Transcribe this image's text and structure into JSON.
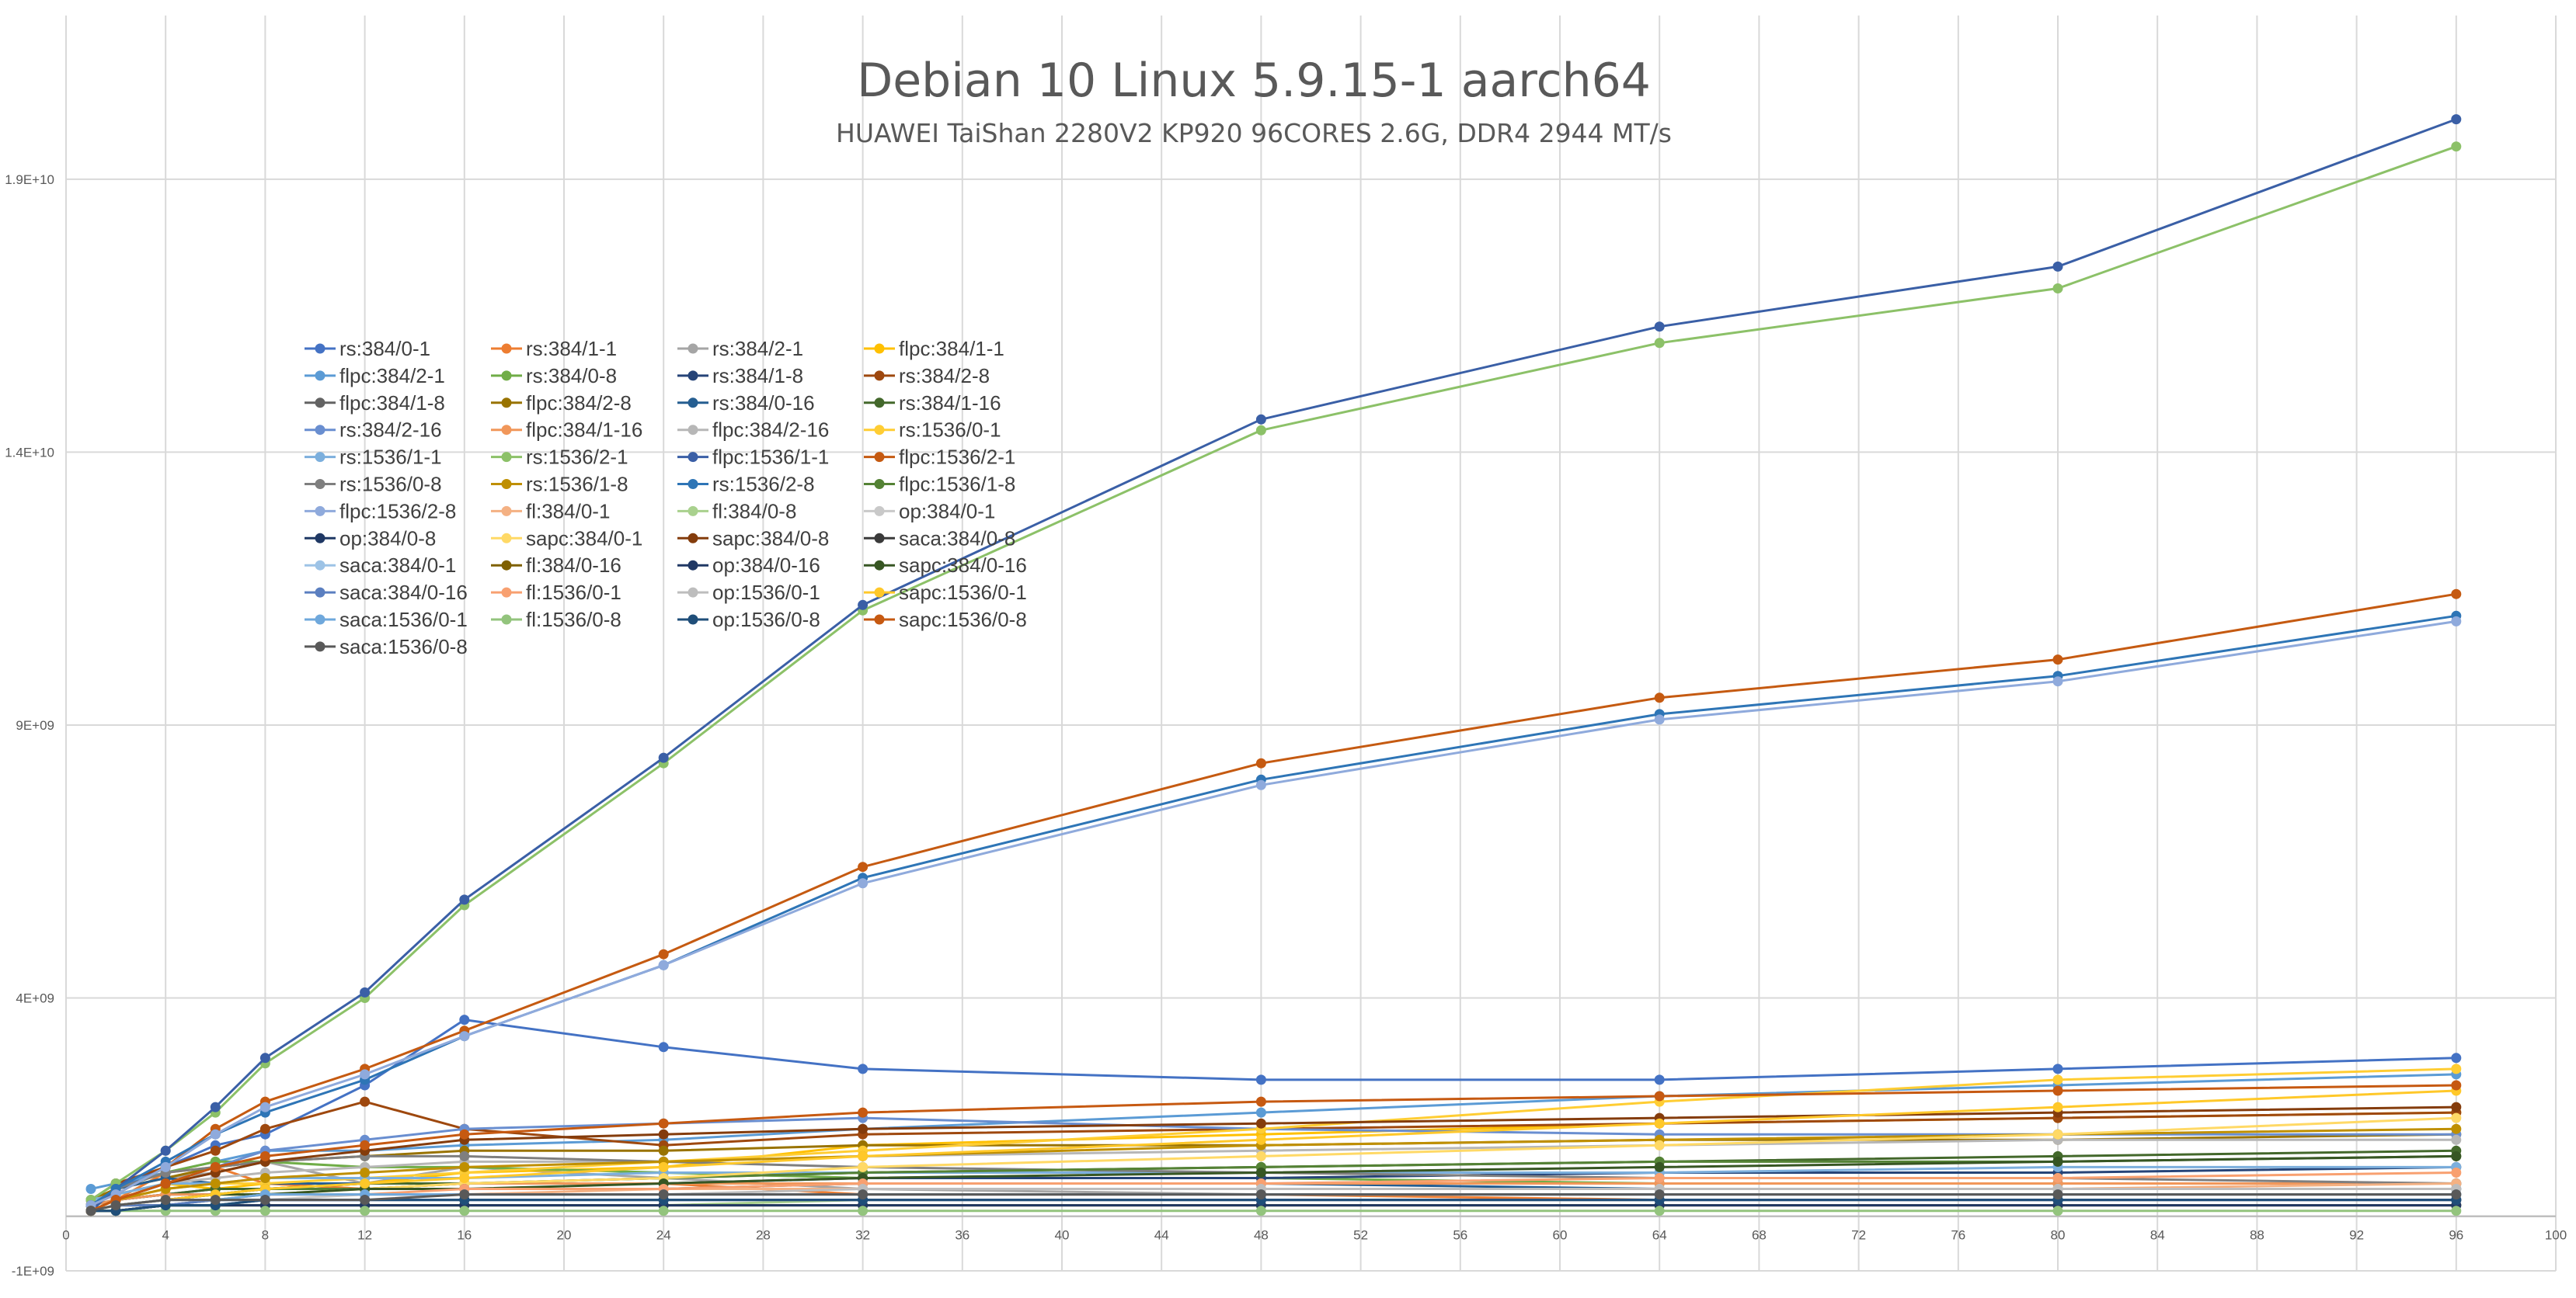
{
  "chart_data": {
    "type": "line",
    "title": "Debian 10 Linux 5.9.15-1 aarch64",
    "subtitle": "HUAWEI TaiShan 2280V2  KP920 96CORES 2.6G, DDR4 2944 MT/s",
    "xlabel": "",
    "ylabel": "",
    "xlim": [
      0,
      100
    ],
    "ylim": [
      -1000000000,
      22000000000
    ],
    "x_ticks": [
      "0",
      "4",
      "8",
      "12",
      "16",
      "20",
      "24",
      "28",
      "32",
      "36",
      "40",
      "44",
      "48",
      "52",
      "56",
      "60",
      "64",
      "68",
      "72",
      "76",
      "80",
      "84",
      "88",
      "92",
      "96",
      "100"
    ],
    "y_ticks": [
      {
        "value": -1000000000,
        "label": "-1E+09"
      },
      {
        "value": 4000000000,
        "label": "4E+09"
      },
      {
        "value": 9000000000,
        "label": "9E+09"
      },
      {
        "value": 14000000000,
        "label": "1.4E+10"
      },
      {
        "value": 19000000000,
        "label": "1.9E+10"
      }
    ],
    "grid": true,
    "legend_position": "upper-left",
    "x": [
      1,
      2,
      4,
      6,
      8,
      12,
      16,
      24,
      32,
      48,
      64,
      80,
      96
    ],
    "series": [
      {
        "name": "rs:384/0-1",
        "color": "#4472C4",
        "values": [
          100000000.0,
          500000000.0,
          900000000.0,
          1300000000.0,
          1500000000.0,
          2400000000.0,
          3600000000.0,
          3100000000.0,
          2700000000.0,
          2500000000.0,
          2500000000.0,
          2700000000.0,
          2900000000.0
        ]
      },
      {
        "name": "rs:384/1-1",
        "color": "#ED7D31",
        "values": [
          200000000.0,
          300000000.0,
          800000000.0,
          900000000.0,
          600000000.0,
          500000000.0,
          600000000.0,
          600000000.0,
          400000000.0,
          400000000.0,
          300000000.0,
          300000000.0,
          300000000.0
        ]
      },
      {
        "name": "rs:384/2-1",
        "color": "#A5A5A5",
        "values": [
          300000000.0,
          500000000.0,
          700000000.0,
          800000000.0,
          1000000000.0,
          600000000.0,
          900000000.0,
          700000000.0,
          500000000.0,
          400000000.0,
          400000000.0,
          400000000.0,
          400000000.0
        ]
      },
      {
        "name": "flpc:384/1-1",
        "color": "#FFC000",
        "values": [
          200000000.0,
          400000000.0,
          600000000.0,
          500000000.0,
          600000000.0,
          600000000.0,
          800000000.0,
          900000000.0,
          1300000000.0,
          1500000000.0,
          1700000000.0,
          1800000000.0,
          1900000000.0
        ]
      },
      {
        "name": "flpc:384/2-1",
        "color": "#5B9BD5",
        "values": [
          500000000.0,
          600000000.0,
          800000000.0,
          1000000000.0,
          1200000000.0,
          1200000000.0,
          1300000000.0,
          1400000000.0,
          1600000000.0,
          1900000000.0,
          2200000000.0,
          2400000000.0,
          2600000000.0
        ]
      },
      {
        "name": "rs:384/0-8",
        "color": "#70AD47",
        "values": [
          100000000.0,
          500000000.0,
          800000000.0,
          1000000000.0,
          1000000000.0,
          900000000.0,
          900000000.0,
          800000000.0,
          700000000.0,
          700000000.0,
          600000000.0,
          600000000.0,
          600000000.0
        ]
      },
      {
        "name": "rs:384/1-8",
        "color": "#264478",
        "values": [
          200000000.0,
          300000000.0,
          400000000.0,
          500000000.0,
          500000000.0,
          600000000.0,
          600000000.0,
          600000000.0,
          700000000.0,
          700000000.0,
          800000000.0,
          800000000.0,
          900000000.0
        ]
      },
      {
        "name": "rs:384/2-8",
        "color": "#9E480E",
        "values": [
          300000000.0,
          600000000.0,
          900000000.0,
          1200000000.0,
          1600000000.0,
          2100000000.0,
          1600000000.0,
          1300000000.0,
          1500000000.0,
          1600000000.0,
          1700000000.0,
          1800000000.0,
          1900000000.0
        ]
      },
      {
        "name": "flpc:384/1-8",
        "color": "#636363",
        "values": [
          200000000.0,
          300000000.0,
          400000000.0,
          400000000.0,
          500000000.0,
          500000000.0,
          500000000.0,
          500000000.0,
          600000000.0,
          600000000.0,
          600000000.0,
          600000000.0,
          600000000.0
        ]
      },
      {
        "name": "flpc:384/2-8",
        "color": "#997300",
        "values": [
          300000000.0,
          500000000.0,
          700000000.0,
          900000000.0,
          1000000000.0,
          1100000000.0,
          1200000000.0,
          1200000000.0,
          1300000000.0,
          1300000000.0,
          1400000000.0,
          1400000000.0,
          1500000000.0
        ]
      },
      {
        "name": "rs:384/0-16",
        "color": "#255E91",
        "values": [
          100000000.0,
          500000000.0,
          700000000.0,
          600000000.0,
          600000000.0,
          600000000.0,
          600000000.0,
          600000000.0,
          600000000.0,
          600000000.0,
          500000000.0,
          500000000.0,
          500000000.0
        ]
      },
      {
        "name": "rs:384/1-16",
        "color": "#43682B",
        "values": [
          200000000.0,
          300000000.0,
          400000000.0,
          500000000.0,
          500000000.0,
          600000000.0,
          600000000.0,
          700000000.0,
          800000000.0,
          900000000.0,
          1000000000.0,
          1100000000.0,
          1200000000.0
        ]
      },
      {
        "name": "rs:384/2-16",
        "color": "#698ED0",
        "values": [
          100000000.0,
          300000000.0,
          600000000.0,
          900000000.0,
          1200000000.0,
          1400000000.0,
          1600000000.0,
          1700000000.0,
          1800000000.0,
          1600000000.0,
          1500000000.0,
          1500000000.0,
          1500000000.0
        ]
      },
      {
        "name": "flpc:384/1-16",
        "color": "#F1975A",
        "values": [
          200000000.0,
          300000000.0,
          400000000.0,
          400000000.0,
          500000000.0,
          500000000.0,
          600000000.0,
          600000000.0,
          600000000.0,
          600000000.0,
          600000000.0,
          600000000.0,
          600000000.0
        ]
      },
      {
        "name": "flpc:384/2-16",
        "color": "#B7B7B7",
        "values": [
          300000000.0,
          400000000.0,
          600000000.0,
          700000000.0,
          800000000.0,
          900000000.0,
          1000000000.0,
          1000000000.0,
          1100000000.0,
          1200000000.0,
          1300000000.0,
          1400000000.0,
          1400000000.0
        ]
      },
      {
        "name": "rs:1536/0-1",
        "color": "#FFCD33",
        "values": [
          100000000.0,
          300000000.0,
          500000000.0,
          600000000.0,
          600000000.0,
          700000000.0,
          800000000.0,
          1000000000.0,
          1200000000.0,
          1600000000.0,
          2100000000.0,
          2500000000.0,
          2700000000.0
        ]
      },
      {
        "name": "rs:1536/1-1",
        "color": "#7CAFDD",
        "values": [
          300000000.0,
          400000000.0,
          600000000.0,
          600000000.0,
          700000000.0,
          700000000.0,
          700000000.0,
          800000000.0,
          800000000.0,
          800000000.0,
          800000000.0,
          900000000.0,
          900000000.0
        ]
      },
      {
        "name": "rs:1536/2-1",
        "color": "#8CC168",
        "values": [
          300000000.0,
          600000000.0,
          1200000000.0,
          1900000000.0,
          2800000000.0,
          4000000000.0,
          5700000000.0,
          8300000000.0,
          11100000000.0,
          14400000000.0,
          16000000000.0,
          17000000000.0,
          19600000000.0
        ]
      },
      {
        "name": "flpc:1536/1-1",
        "color": "#3A5FA6",
        "values": [
          100000000.0,
          500000000.0,
          1200000000.0,
          2000000000.0,
          2900000000.0,
          4100000000.0,
          5800000000.0,
          8400000000.0,
          11200000000.0,
          14600000000.0,
          16300000000.0,
          17400000000.0,
          20100000000.0
        ]
      },
      {
        "name": "flpc:1536/2-1",
        "color": "#C55A11",
        "values": [
          200000000.0,
          400000000.0,
          900000000.0,
          1600000000.0,
          2100000000.0,
          2700000000.0,
          3400000000.0,
          4800000000.0,
          6400000000.0,
          8300000000.0,
          9500000000.0,
          10200000000.0,
          11400000000.0
        ]
      },
      {
        "name": "rs:1536/0-8",
        "color": "#7F7F7F",
        "values": [
          200000000.0,
          500000000.0,
          800000000.0,
          900000000.0,
          1000000000.0,
          1100000000.0,
          1100000000.0,
          1000000000.0,
          900000000.0,
          800000000.0,
          700000000.0,
          700000000.0,
          600000000.0
        ]
      },
      {
        "name": "rs:1536/1-8",
        "color": "#BF8F00",
        "values": [
          100000000.0,
          300000000.0,
          500000000.0,
          600000000.0,
          700000000.0,
          800000000.0,
          900000000.0,
          1000000000.0,
          1100000000.0,
          1300000000.0,
          1400000000.0,
          1500000000.0,
          1600000000.0
        ]
      },
      {
        "name": "rs:1536/2-8",
        "color": "#2E75B6",
        "values": [
          200000000.0,
          500000000.0,
          1000000000.0,
          1500000000.0,
          1900000000.0,
          2500000000.0,
          3300000000.0,
          4600000000.0,
          6200000000.0,
          8000000000.0,
          9200000000.0,
          9900000000.0,
          11000000000.0
        ]
      },
      {
        "name": "flpc:1536/1-8",
        "color": "#548235",
        "values": [
          100000000.0,
          200000000.0,
          300000000.0,
          400000000.0,
          500000000.0,
          500000000.0,
          600000000.0,
          700000000.0,
          800000000.0,
          900000000.0,
          1000000000.0,
          1000000000.0,
          1100000000.0
        ]
      },
      {
        "name": "flpc:1536/2-8",
        "color": "#8FAADC",
        "values": [
          200000000.0,
          400000000.0,
          900000000.0,
          1500000000.0,
          2000000000.0,
          2600000000.0,
          3300000000.0,
          4600000000.0,
          6100000000.0,
          7900000000.0,
          9100000000.0,
          9800000000.0,
          10900000000.0
        ]
      },
      {
        "name": "fl:384/0-1",
        "color": "#F4B183",
        "values": [
          100000000.0,
          200000000.0,
          300000000.0,
          300000000.0,
          400000000.0,
          400000000.0,
          400000000.0,
          500000000.0,
          500000000.0,
          500000000.0,
          500000000.0,
          500000000.0,
          600000000.0
        ]
      },
      {
        "name": "fl:384/0-8",
        "color": "#A9D18E",
        "values": [
          100000000.0,
          100000000.0,
          200000000.0,
          200000000.0,
          200000000.0,
          200000000.0,
          200000000.0,
          200000000.0,
          300000000.0,
          300000000.0,
          300000000.0,
          300000000.0,
          300000000.0
        ]
      },
      {
        "name": "op:384/0-1",
        "color": "#C9C9C9",
        "values": [
          100000000.0,
          200000000.0,
          300000000.0,
          300000000.0,
          300000000.0,
          400000000.0,
          400000000.0,
          400000000.0,
          400000000.0,
          400000000.0,
          400000000.0,
          400000000.0,
          400000000.0
        ]
      },
      {
        "name": "op:384/0-8",
        "color": "#1F3864",
        "values": [
          100000000.0,
          100000000.0,
          200000000.0,
          200000000.0,
          300000000.0,
          300000000.0,
          300000000.0,
          300000000.0,
          300000000.0,
          300000000.0,
          300000000.0,
          300000000.0,
          300000000.0
        ]
      },
      {
        "name": "sapc:384/0-1",
        "color": "#FFD966",
        "values": [
          100000000.0,
          200000000.0,
          300000000.0,
          400000000.0,
          400000000.0,
          500000000.0,
          600000000.0,
          700000000.0,
          900000000.0,
          1100000000.0,
          1300000000.0,
          1500000000.0,
          1800000000.0
        ]
      },
      {
        "name": "sapc:384/0-8",
        "color": "#843C0C",
        "values": [
          100000000.0,
          300000000.0,
          600000000.0,
          800000000.0,
          1000000000.0,
          1200000000.0,
          1400000000.0,
          1500000000.0,
          1600000000.0,
          1700000000.0,
          1800000000.0,
          1900000000.0,
          2000000000.0
        ]
      },
      {
        "name": "saca:384/0-8",
        "color": "#3A3A3A",
        "values": [
          100000000.0,
          200000000.0,
          200000000.0,
          300000000.0,
          300000000.0,
          300000000.0,
          300000000.0,
          300000000.0,
          300000000.0,
          300000000.0,
          300000000.0,
          300000000.0,
          300000000.0
        ]
      },
      {
        "name": "saca:384/0-1",
        "color": "#9DC3E6",
        "values": [
          100000000.0,
          200000000.0,
          300000000.0,
          300000000.0,
          300000000.0,
          300000000.0,
          300000000.0,
          300000000.0,
          300000000.0,
          300000000.0,
          300000000.0,
          300000000.0,
          300000000.0
        ]
      },
      {
        "name": "fl:384/0-16",
        "color": "#7F6000",
        "values": [
          100000000.0,
          100000000.0,
          200000000.0,
          200000000.0,
          200000000.0,
          200000000.0,
          200000000.0,
          200000000.0,
          200000000.0,
          200000000.0,
          200000000.0,
          200000000.0,
          200000000.0
        ]
      },
      {
        "name": "op:384/0-16",
        "color": "#203864",
        "values": [
          100000000.0,
          100000000.0,
          200000000.0,
          200000000.0,
          200000000.0,
          200000000.0,
          200000000.0,
          200000000.0,
          200000000.0,
          200000000.0,
          200000000.0,
          200000000.0,
          200000000.0
        ]
      },
      {
        "name": "sapc:384/0-16",
        "color": "#375623",
        "values": [
          100000000.0,
          200000000.0,
          300000000.0,
          400000000.0,
          400000000.0,
          500000000.0,
          500000000.0,
          600000000.0,
          700000000.0,
          800000000.0,
          900000000.0,
          1000000000.0,
          1100000000.0
        ]
      },
      {
        "name": "saca:384/0-16",
        "color": "#5B7FC0",
        "values": [
          100000000.0,
          200000000.0,
          200000000.0,
          300000000.0,
          300000000.0,
          300000000.0,
          300000000.0,
          300000000.0,
          300000000.0,
          300000000.0,
          300000000.0,
          300000000.0,
          300000000.0
        ]
      },
      {
        "name": "fl:1536/0-1",
        "color": "#F8A070",
        "values": [
          100000000.0,
          200000000.0,
          300000000.0,
          300000000.0,
          400000000.0,
          400000000.0,
          500000000.0,
          500000000.0,
          600000000.0,
          600000000.0,
          700000000.0,
          700000000.0,
          800000000.0
        ]
      },
      {
        "name": "op:1536/0-1",
        "color": "#BDBDBD",
        "values": [
          100000000.0,
          200000000.0,
          300000000.0,
          300000000.0,
          400000000.0,
          400000000.0,
          400000000.0,
          400000000.0,
          500000000.0,
          500000000.0,
          500000000.0,
          500000000.0,
          500000000.0
        ]
      },
      {
        "name": "sapc:1536/0-1",
        "color": "#FFC829",
        "values": [
          100000000.0,
          200000000.0,
          300000000.0,
          400000000.0,
          500000000.0,
          600000000.0,
          700000000.0,
          900000000.0,
          1100000000.0,
          1400000000.0,
          1700000000.0,
          2000000000.0,
          2300000000.0
        ]
      },
      {
        "name": "saca:1536/0-1",
        "color": "#6FA8DC",
        "values": [
          100000000.0,
          200000000.0,
          300000000.0,
          300000000.0,
          400000000.0,
          400000000.0,
          400000000.0,
          400000000.0,
          400000000.0,
          400000000.0,
          400000000.0,
          400000000.0,
          400000000.0
        ]
      },
      {
        "name": "fl:1536/0-8",
        "color": "#93C47D",
        "values": [
          100000000.0,
          100000000.0,
          100000000.0,
          100000000.0,
          100000000.0,
          100000000.0,
          100000000.0,
          100000000.0,
          100000000.0,
          100000000.0,
          100000000.0,
          100000000.0,
          100000000.0
        ]
      },
      {
        "name": "op:1536/0-8",
        "color": "#1F4E79",
        "values": [
          100000000.0,
          100000000.0,
          200000000.0,
          200000000.0,
          300000000.0,
          300000000.0,
          300000000.0,
          300000000.0,
          300000000.0,
          300000000.0,
          300000000.0,
          300000000.0,
          300000000.0
        ]
      },
      {
        "name": "sapc:1536/0-8",
        "color": "#C65911",
        "values": [
          100000000.0,
          300000000.0,
          600000000.0,
          900000000.0,
          1100000000.0,
          1300000000.0,
          1500000000.0,
          1700000000.0,
          1900000000.0,
          2100000000.0,
          2200000000.0,
          2300000000.0,
          2400000000.0
        ]
      },
      {
        "name": "saca:1536/0-8",
        "color": "#595959",
        "values": [
          100000000.0,
          200000000.0,
          300000000.0,
          300000000.0,
          300000000.0,
          300000000.0,
          400000000.0,
          400000000.0,
          400000000.0,
          400000000.0,
          400000000.0,
          400000000.0,
          400000000.0
        ]
      }
    ]
  }
}
